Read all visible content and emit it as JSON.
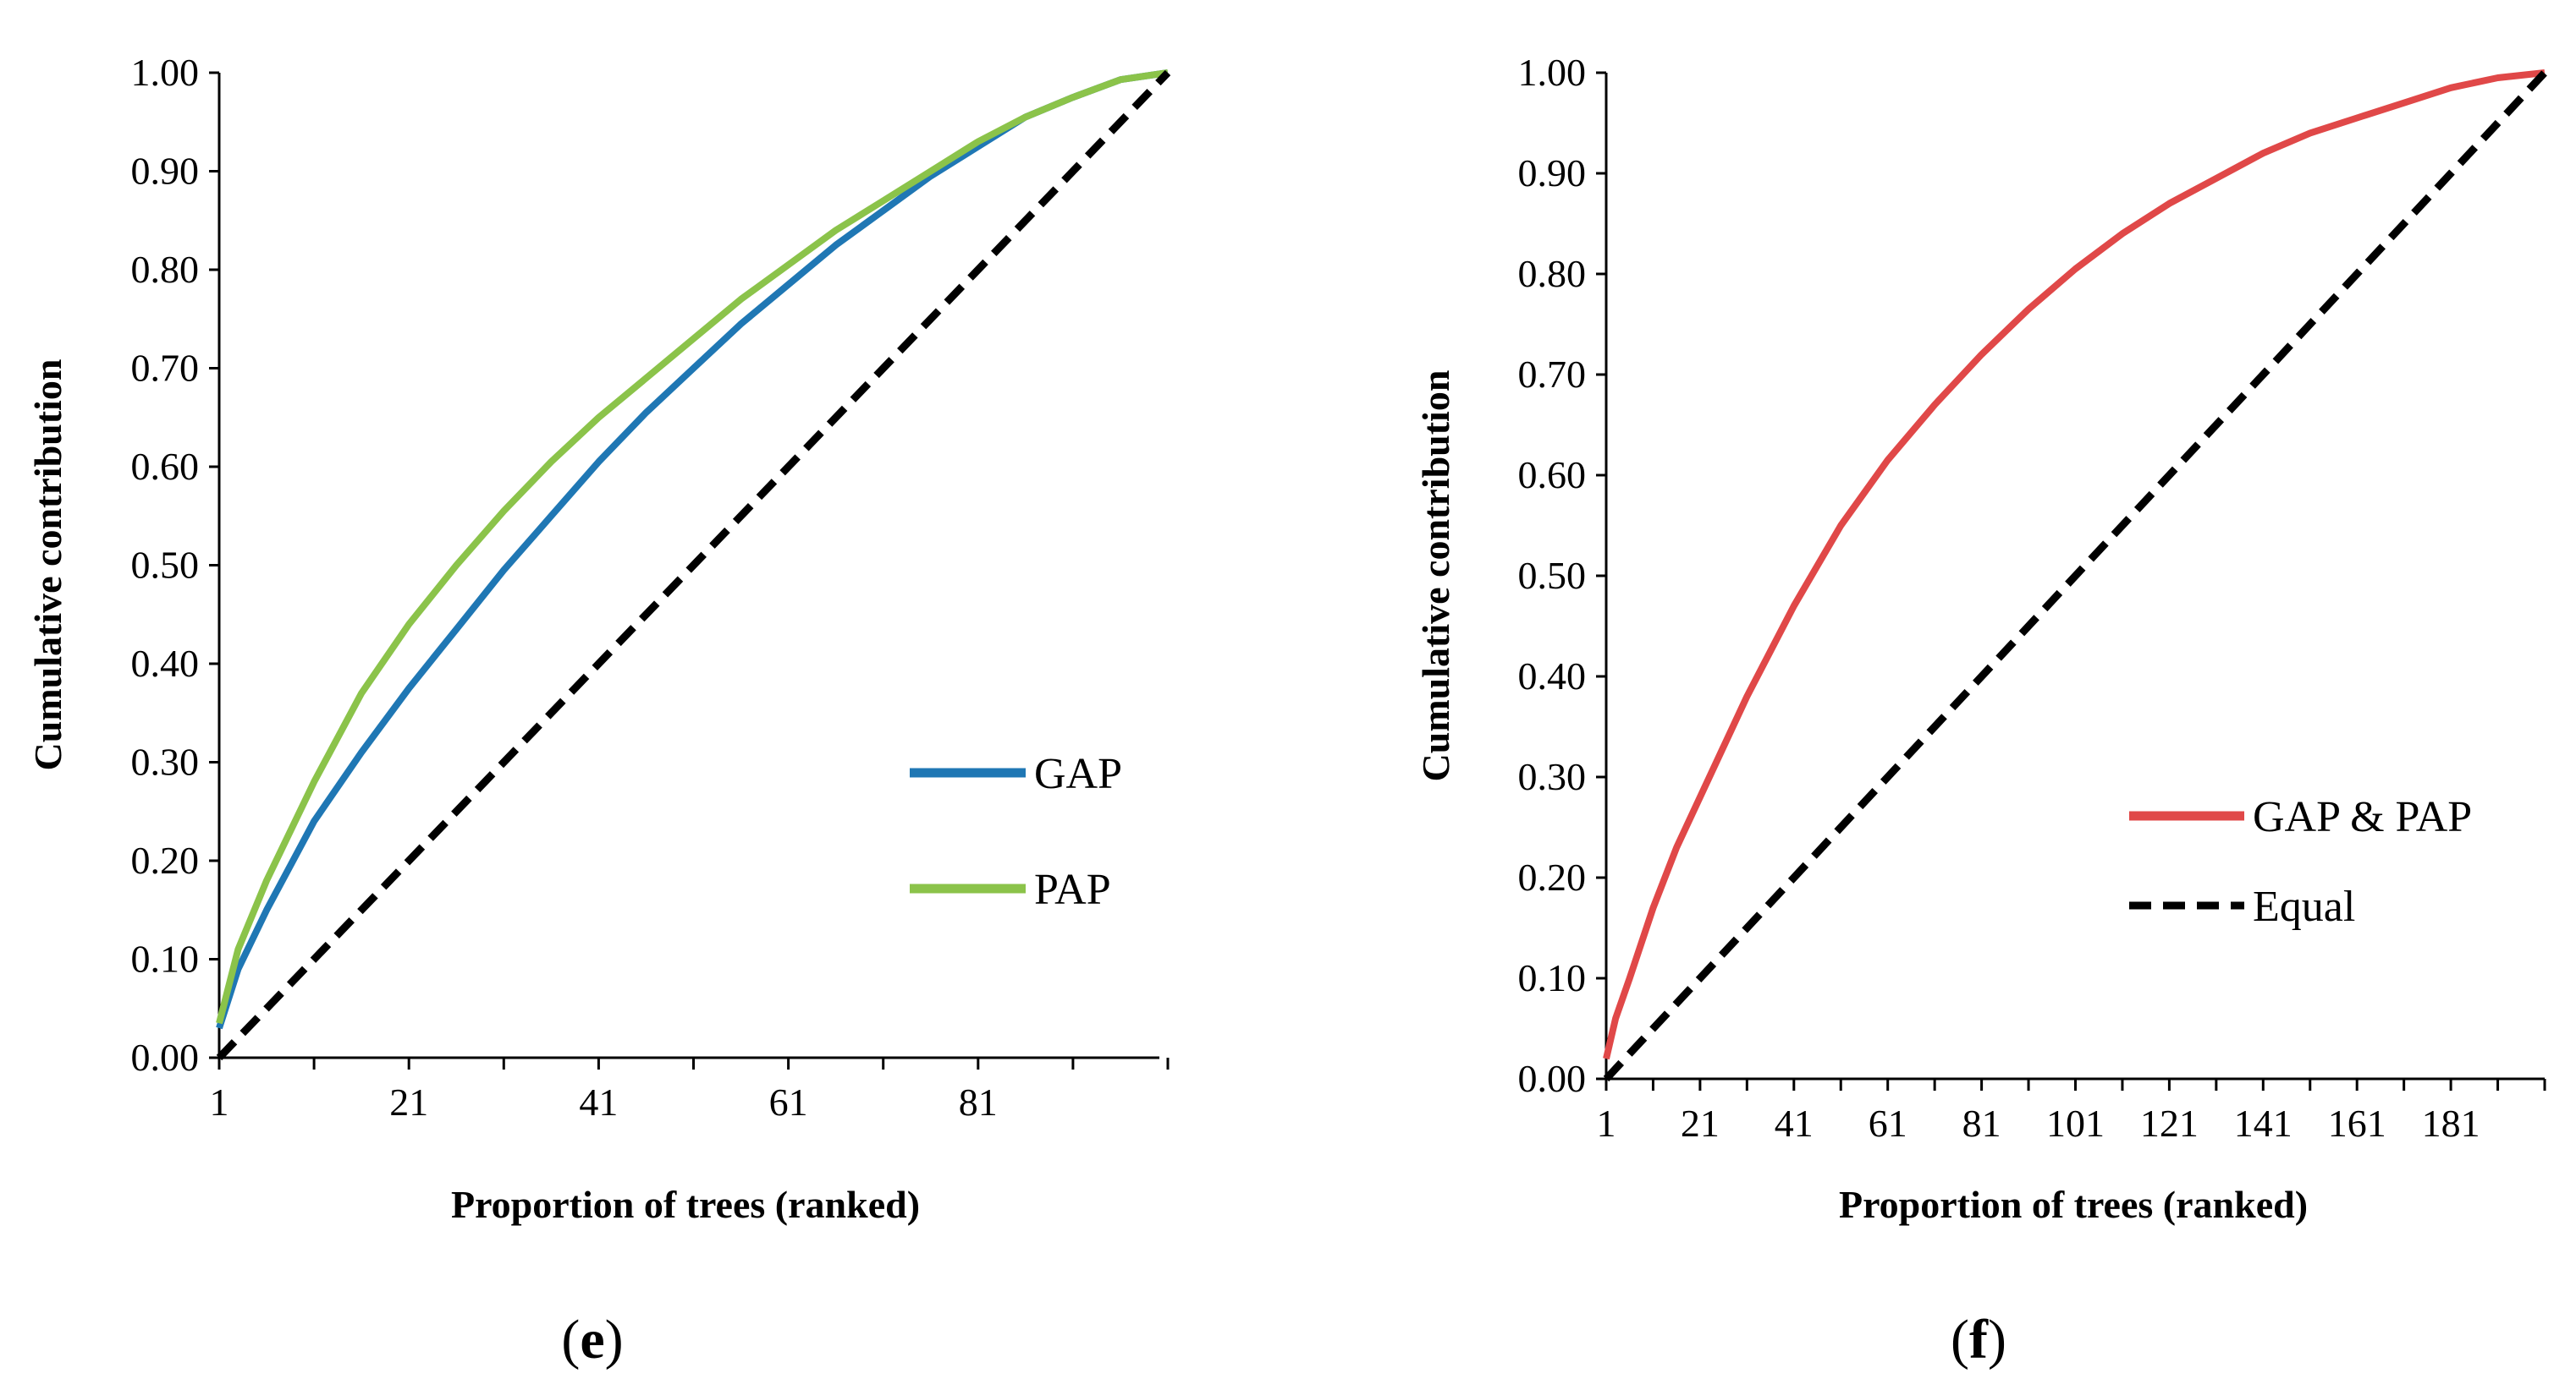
{
  "chart_data": [
    {
      "type": "line",
      "panel": "e",
      "panel_label_open": "(",
      "panel_label_letter": "e",
      "panel_label_close": ")",
      "xlabel": "Proportion of trees (ranked)",
      "ylabel": "Cumulative contribution",
      "xlim": [
        1,
        101
      ],
      "ylim": [
        0,
        1
      ],
      "xticks": [
        1,
        21,
        41,
        61,
        81
      ],
      "yticks": [
        "0.00",
        "0.10",
        "0.20",
        "0.30",
        "0.40",
        "0.50",
        "0.60",
        "0.70",
        "0.80",
        "0.90",
        "1.00"
      ],
      "legend_position": "right-middle",
      "series": [
        {
          "name": "GAP",
          "color": "#1f77b4",
          "style": "solid",
          "x": [
            1,
            3,
            6,
            11,
            16,
            21,
            26,
            31,
            36,
            41,
            46,
            51,
            56,
            61,
            66,
            71,
            76,
            81,
            86,
            91,
            96,
            101
          ],
          "y": [
            0.03,
            0.09,
            0.15,
            0.24,
            0.31,
            0.375,
            0.435,
            0.495,
            0.55,
            0.605,
            0.655,
            0.7,
            0.745,
            0.785,
            0.825,
            0.86,
            0.895,
            0.925,
            0.955,
            0.975,
            0.993,
            1.0
          ]
        },
        {
          "name": "PAP",
          "color": "#8bc34a",
          "style": "solid",
          "x": [
            1,
            3,
            6,
            11,
            16,
            21,
            26,
            31,
            36,
            41,
            46,
            51,
            56,
            61,
            66,
            71,
            76,
            81,
            86,
            91,
            96,
            101
          ],
          "y": [
            0.035,
            0.11,
            0.18,
            0.28,
            0.37,
            0.44,
            0.5,
            0.555,
            0.605,
            0.65,
            0.69,
            0.73,
            0.77,
            0.805,
            0.84,
            0.87,
            0.9,
            0.93,
            0.955,
            0.975,
            0.993,
            1.0
          ]
        },
        {
          "name": "Equal",
          "color": "#000000",
          "style": "dashed",
          "in_legend": false,
          "x": [
            1,
            101
          ],
          "y": [
            0.0,
            1.0
          ]
        }
      ]
    },
    {
      "type": "line",
      "panel": "f",
      "panel_label_open": "(",
      "panel_label_letter": "f",
      "panel_label_close": ")",
      "xlabel": "Proportion of trees (ranked)",
      "ylabel": "Cumulative contribution",
      "xlim": [
        1,
        201
      ],
      "ylim": [
        0,
        1
      ],
      "xticks": [
        1,
        21,
        41,
        61,
        81,
        101,
        121,
        141,
        161,
        181
      ],
      "yticks": [
        "0.00",
        "0.10",
        "0.20",
        "0.30",
        "0.40",
        "0.50",
        "0.60",
        "0.70",
        "0.80",
        "0.90",
        "1.00"
      ],
      "legend_position": "right-middle",
      "series": [
        {
          "name": "GAP & PAP",
          "color": "#e04848",
          "style": "solid",
          "x": [
            1,
            3,
            6,
            11,
            16,
            21,
            31,
            41,
            51,
            61,
            71,
            81,
            91,
            101,
            111,
            121,
            131,
            141,
            151,
            161,
            171,
            181,
            191,
            201
          ],
          "y": [
            0.02,
            0.06,
            0.1,
            0.17,
            0.23,
            0.28,
            0.38,
            0.47,
            0.55,
            0.615,
            0.67,
            0.72,
            0.765,
            0.805,
            0.84,
            0.87,
            0.895,
            0.92,
            0.94,
            0.955,
            0.97,
            0.985,
            0.995,
            1.0
          ]
        },
        {
          "name": "Equal",
          "color": "#000000",
          "style": "dashed",
          "x": [
            1,
            201
          ],
          "y": [
            0.0,
            1.0
          ]
        }
      ]
    }
  ]
}
